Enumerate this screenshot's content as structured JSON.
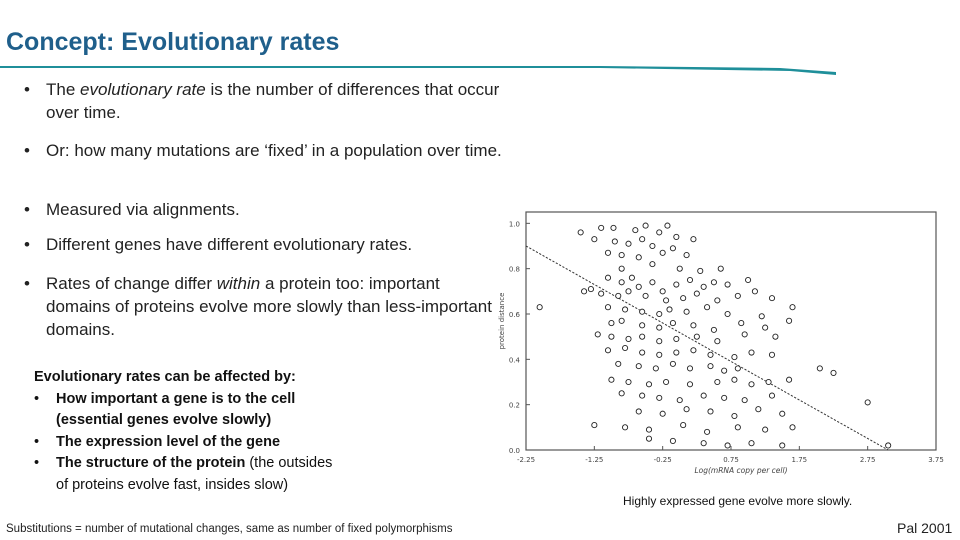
{
  "slide": {
    "title": "Concept: Evolutionary rates",
    "bullets": [
      {
        "parts": [
          {
            "t": "The ",
            "i": false
          },
          {
            "t": "evolutionary rate",
            "i": true
          },
          {
            "t": " is the number of differences that occur over time.",
            "i": false
          }
        ]
      },
      {
        "parts": [
          {
            "t": "Or: how many mutations are ‘fixed’ in a population over time.",
            "i": false
          }
        ]
      },
      {
        "parts": [
          {
            "t": "Measured via alignments.",
            "i": false
          }
        ]
      },
      {
        "parts": [
          {
            "t": "Different genes have different evolutionary rates.",
            "i": false
          }
        ]
      },
      {
        "parts": [
          {
            "t": "Rates of change differ ",
            "i": false
          },
          {
            "t": "within",
            "i": true
          },
          {
            "t": " a protein too: important domains of proteins evolve more slowly than less-important domains.",
            "i": false
          }
        ]
      }
    ],
    "bullet_symbol": "•",
    "affects": {
      "heading": "Evolutionary rates can be affected by:",
      "items": [
        {
          "bold": "How important a gene is to the cell",
          "plain": " (essential genes evolve slowly)",
          "plain_bold": true
        },
        {
          "bold": "The expression level of the gene",
          "plain": "",
          "plain_bold": true
        },
        {
          "bold": "The structure of the protein",
          "plain": " (the outsides of proteins evolve fast, insides slow)",
          "plain_bold": false
        }
      ]
    },
    "footnote": "Substitutions = number of mutational changes, same as number of fixed polymorphisms",
    "caption": "Highly expressed gene evolve more slowly.",
    "citation": "Pal 2001",
    "colors": {
      "title": "#1f5f8b",
      "rule": "#1f8f9a"
    }
  },
  "chart_data": {
    "type": "scatter",
    "xlabel": "Log(mRNA copy per cell)",
    "ylabel": "protein distance",
    "xlim": [
      -2.25,
      3.75
    ],
    "ylim": [
      0.0,
      1.05
    ],
    "x_ticks": [
      "-2.25",
      "-1.25",
      "-0.25",
      "0.75",
      "1.75",
      "2.75",
      "3.75"
    ],
    "y_ticks": [
      "0.0",
      "0.2",
      "0.4",
      "0.6",
      "0.8",
      "1.0"
    ],
    "trend_line": {
      "x": [
        -2.25,
        3.05
      ],
      "y": [
        0.9,
        0.0
      ]
    },
    "points": [
      [
        -1.45,
        0.96
      ],
      [
        -1.15,
        0.98
      ],
      [
        -0.97,
        0.98
      ],
      [
        -0.65,
        0.97
      ],
      [
        -0.5,
        0.99
      ],
      [
        -0.3,
        0.96
      ],
      [
        -0.18,
        0.99
      ],
      [
        -1.25,
        0.93
      ],
      [
        -0.95,
        0.92
      ],
      [
        -0.75,
        0.91
      ],
      [
        -0.55,
        0.93
      ],
      [
        -0.4,
        0.9
      ],
      [
        -0.05,
        0.94
      ],
      [
        0.2,
        0.93
      ],
      [
        -1.05,
        0.87
      ],
      [
        -0.85,
        0.86
      ],
      [
        -0.6,
        0.85
      ],
      [
        -0.25,
        0.87
      ],
      [
        -0.1,
        0.89
      ],
      [
        0.1,
        0.86
      ],
      [
        -0.85,
        0.8
      ],
      [
        -0.4,
        0.82
      ],
      [
        0.0,
        0.8
      ],
      [
        0.3,
        0.79
      ],
      [
        0.6,
        0.8
      ],
      [
        -1.05,
        0.76
      ],
      [
        -0.85,
        0.74
      ],
      [
        -0.7,
        0.76
      ],
      [
        -0.6,
        0.72
      ],
      [
        -0.4,
        0.74
      ],
      [
        -0.25,
        0.7
      ],
      [
        -0.05,
        0.73
      ],
      [
        0.15,
        0.75
      ],
      [
        0.35,
        0.72
      ],
      [
        0.5,
        0.74
      ],
      [
        0.7,
        0.73
      ],
      [
        1.0,
        0.75
      ],
      [
        -1.4,
        0.7
      ],
      [
        -1.3,
        0.71
      ],
      [
        -1.15,
        0.69
      ],
      [
        -0.9,
        0.68
      ],
      [
        -0.75,
        0.7
      ],
      [
        -0.5,
        0.68
      ],
      [
        -0.2,
        0.66
      ],
      [
        0.05,
        0.67
      ],
      [
        0.25,
        0.69
      ],
      [
        0.55,
        0.66
      ],
      [
        0.85,
        0.68
      ],
      [
        1.1,
        0.7
      ],
      [
        1.35,
        0.67
      ],
      [
        -2.05,
        0.63
      ],
      [
        -1.05,
        0.63
      ],
      [
        -0.8,
        0.62
      ],
      [
        -0.55,
        0.61
      ],
      [
        -0.3,
        0.6
      ],
      [
        -0.15,
        0.62
      ],
      [
        0.1,
        0.61
      ],
      [
        0.4,
        0.63
      ],
      [
        0.7,
        0.6
      ],
      [
        1.2,
        0.59
      ],
      [
        1.65,
        0.63
      ],
      [
        -1.0,
        0.56
      ],
      [
        -0.85,
        0.57
      ],
      [
        -0.55,
        0.55
      ],
      [
        -0.3,
        0.54
      ],
      [
        -0.1,
        0.56
      ],
      [
        0.2,
        0.55
      ],
      [
        0.5,
        0.53
      ],
      [
        0.9,
        0.56
      ],
      [
        1.25,
        0.54
      ],
      [
        1.6,
        0.57
      ],
      [
        -1.2,
        0.51
      ],
      [
        -1.0,
        0.5
      ],
      [
        -0.75,
        0.49
      ],
      [
        -0.55,
        0.5
      ],
      [
        -0.3,
        0.48
      ],
      [
        -0.05,
        0.49
      ],
      [
        0.25,
        0.5
      ],
      [
        0.55,
        0.48
      ],
      [
        0.95,
        0.51
      ],
      [
        1.4,
        0.5
      ],
      [
        -1.05,
        0.44
      ],
      [
        -0.8,
        0.45
      ],
      [
        -0.55,
        0.43
      ],
      [
        -0.3,
        0.42
      ],
      [
        -0.05,
        0.43
      ],
      [
        0.2,
        0.44
      ],
      [
        0.45,
        0.42
      ],
      [
        0.8,
        0.41
      ],
      [
        1.05,
        0.43
      ],
      [
        1.35,
        0.42
      ],
      [
        -0.9,
        0.38
      ],
      [
        -0.6,
        0.37
      ],
      [
        -0.35,
        0.36
      ],
      [
        -0.1,
        0.38
      ],
      [
        0.15,
        0.36
      ],
      [
        0.45,
        0.37
      ],
      [
        0.65,
        0.35
      ],
      [
        0.85,
        0.36
      ],
      [
        2.05,
        0.36
      ],
      [
        2.25,
        0.34
      ],
      [
        -1.0,
        0.31
      ],
      [
        -0.75,
        0.3
      ],
      [
        -0.45,
        0.29
      ],
      [
        -0.2,
        0.3
      ],
      [
        0.15,
        0.29
      ],
      [
        0.55,
        0.3
      ],
      [
        0.8,
        0.31
      ],
      [
        1.05,
        0.29
      ],
      [
        1.3,
        0.3
      ],
      [
        1.6,
        0.31
      ],
      [
        -0.85,
        0.25
      ],
      [
        -0.55,
        0.24
      ],
      [
        -0.3,
        0.23
      ],
      [
        0.0,
        0.22
      ],
      [
        0.35,
        0.24
      ],
      [
        0.65,
        0.23
      ],
      [
        0.95,
        0.22
      ],
      [
        1.35,
        0.24
      ],
      [
        2.75,
        0.21
      ],
      [
        -0.6,
        0.17
      ],
      [
        -0.25,
        0.16
      ],
      [
        0.1,
        0.18
      ],
      [
        0.45,
        0.17
      ],
      [
        0.8,
        0.15
      ],
      [
        1.15,
        0.18
      ],
      [
        1.5,
        0.16
      ],
      [
        -1.25,
        0.11
      ],
      [
        -0.8,
        0.1
      ],
      [
        -0.45,
        0.09
      ],
      [
        0.05,
        0.11
      ],
      [
        0.4,
        0.08
      ],
      [
        0.85,
        0.1
      ],
      [
        1.25,
        0.09
      ],
      [
        1.65,
        0.1
      ],
      [
        -0.45,
        0.05
      ],
      [
        -0.1,
        0.04
      ],
      [
        0.35,
        0.03
      ],
      [
        0.7,
        0.02
      ],
      [
        1.05,
        0.03
      ],
      [
        1.5,
        0.02
      ],
      [
        3.05,
        0.02
      ]
    ]
  }
}
